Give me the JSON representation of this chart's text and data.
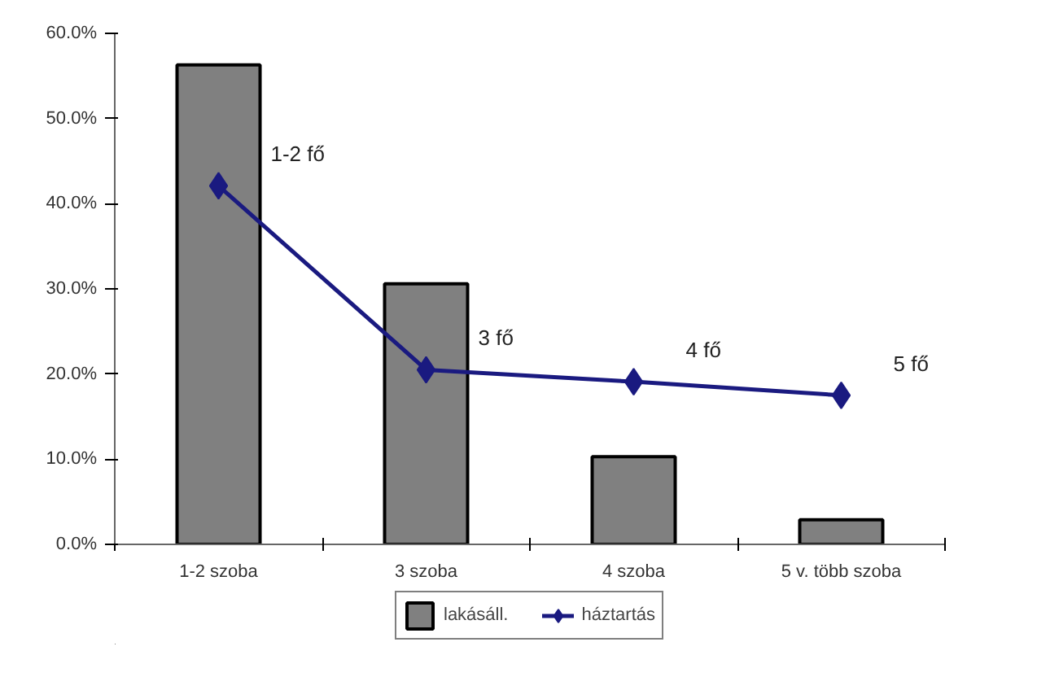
{
  "chart_data": {
    "type": "bar",
    "categories": [
      "1-2 szoba",
      "3 szoba",
      "4 szoba",
      "5 v. több szoba"
    ],
    "series": [
      {
        "name": "lakásáll.",
        "color": "#808080",
        "values": [
          56.3,
          30.6,
          10.3,
          2.9
        ]
      },
      {
        "name": "háztartás",
        "type": "line",
        "color": "#1a1a80",
        "values": [
          42.1,
          20.5,
          19.1,
          17.5
        ]
      }
    ],
    "ylim": [
      0,
      60
    ],
    "yticks": [
      {
        "value": 0,
        "label": "0.0%"
      },
      {
        "value": 10,
        "label": "10.0%"
      },
      {
        "value": 20,
        "label": "20.0%"
      },
      {
        "value": 30,
        "label": "30.0%"
      },
      {
        "value": 40,
        "label": "40.0%"
      },
      {
        "value": 50,
        "label": "50.0%"
      },
      {
        "value": 60,
        "label": "60.0%"
      }
    ],
    "annotations": [
      {
        "text": "1-2 fő",
        "x": "1-2 szoba",
        "y": 42.1
      },
      {
        "text": "3 fő",
        "x": "3 szoba",
        "y": 20.5
      },
      {
        "text": "4 fő",
        "x": "4 szoba",
        "y": 19.1
      },
      {
        "text": "5 fő",
        "x": "5 v. több szoba",
        "y": 17.5
      }
    ],
    "marker": "diamond",
    "grid": false,
    "legend": "bottom"
  }
}
